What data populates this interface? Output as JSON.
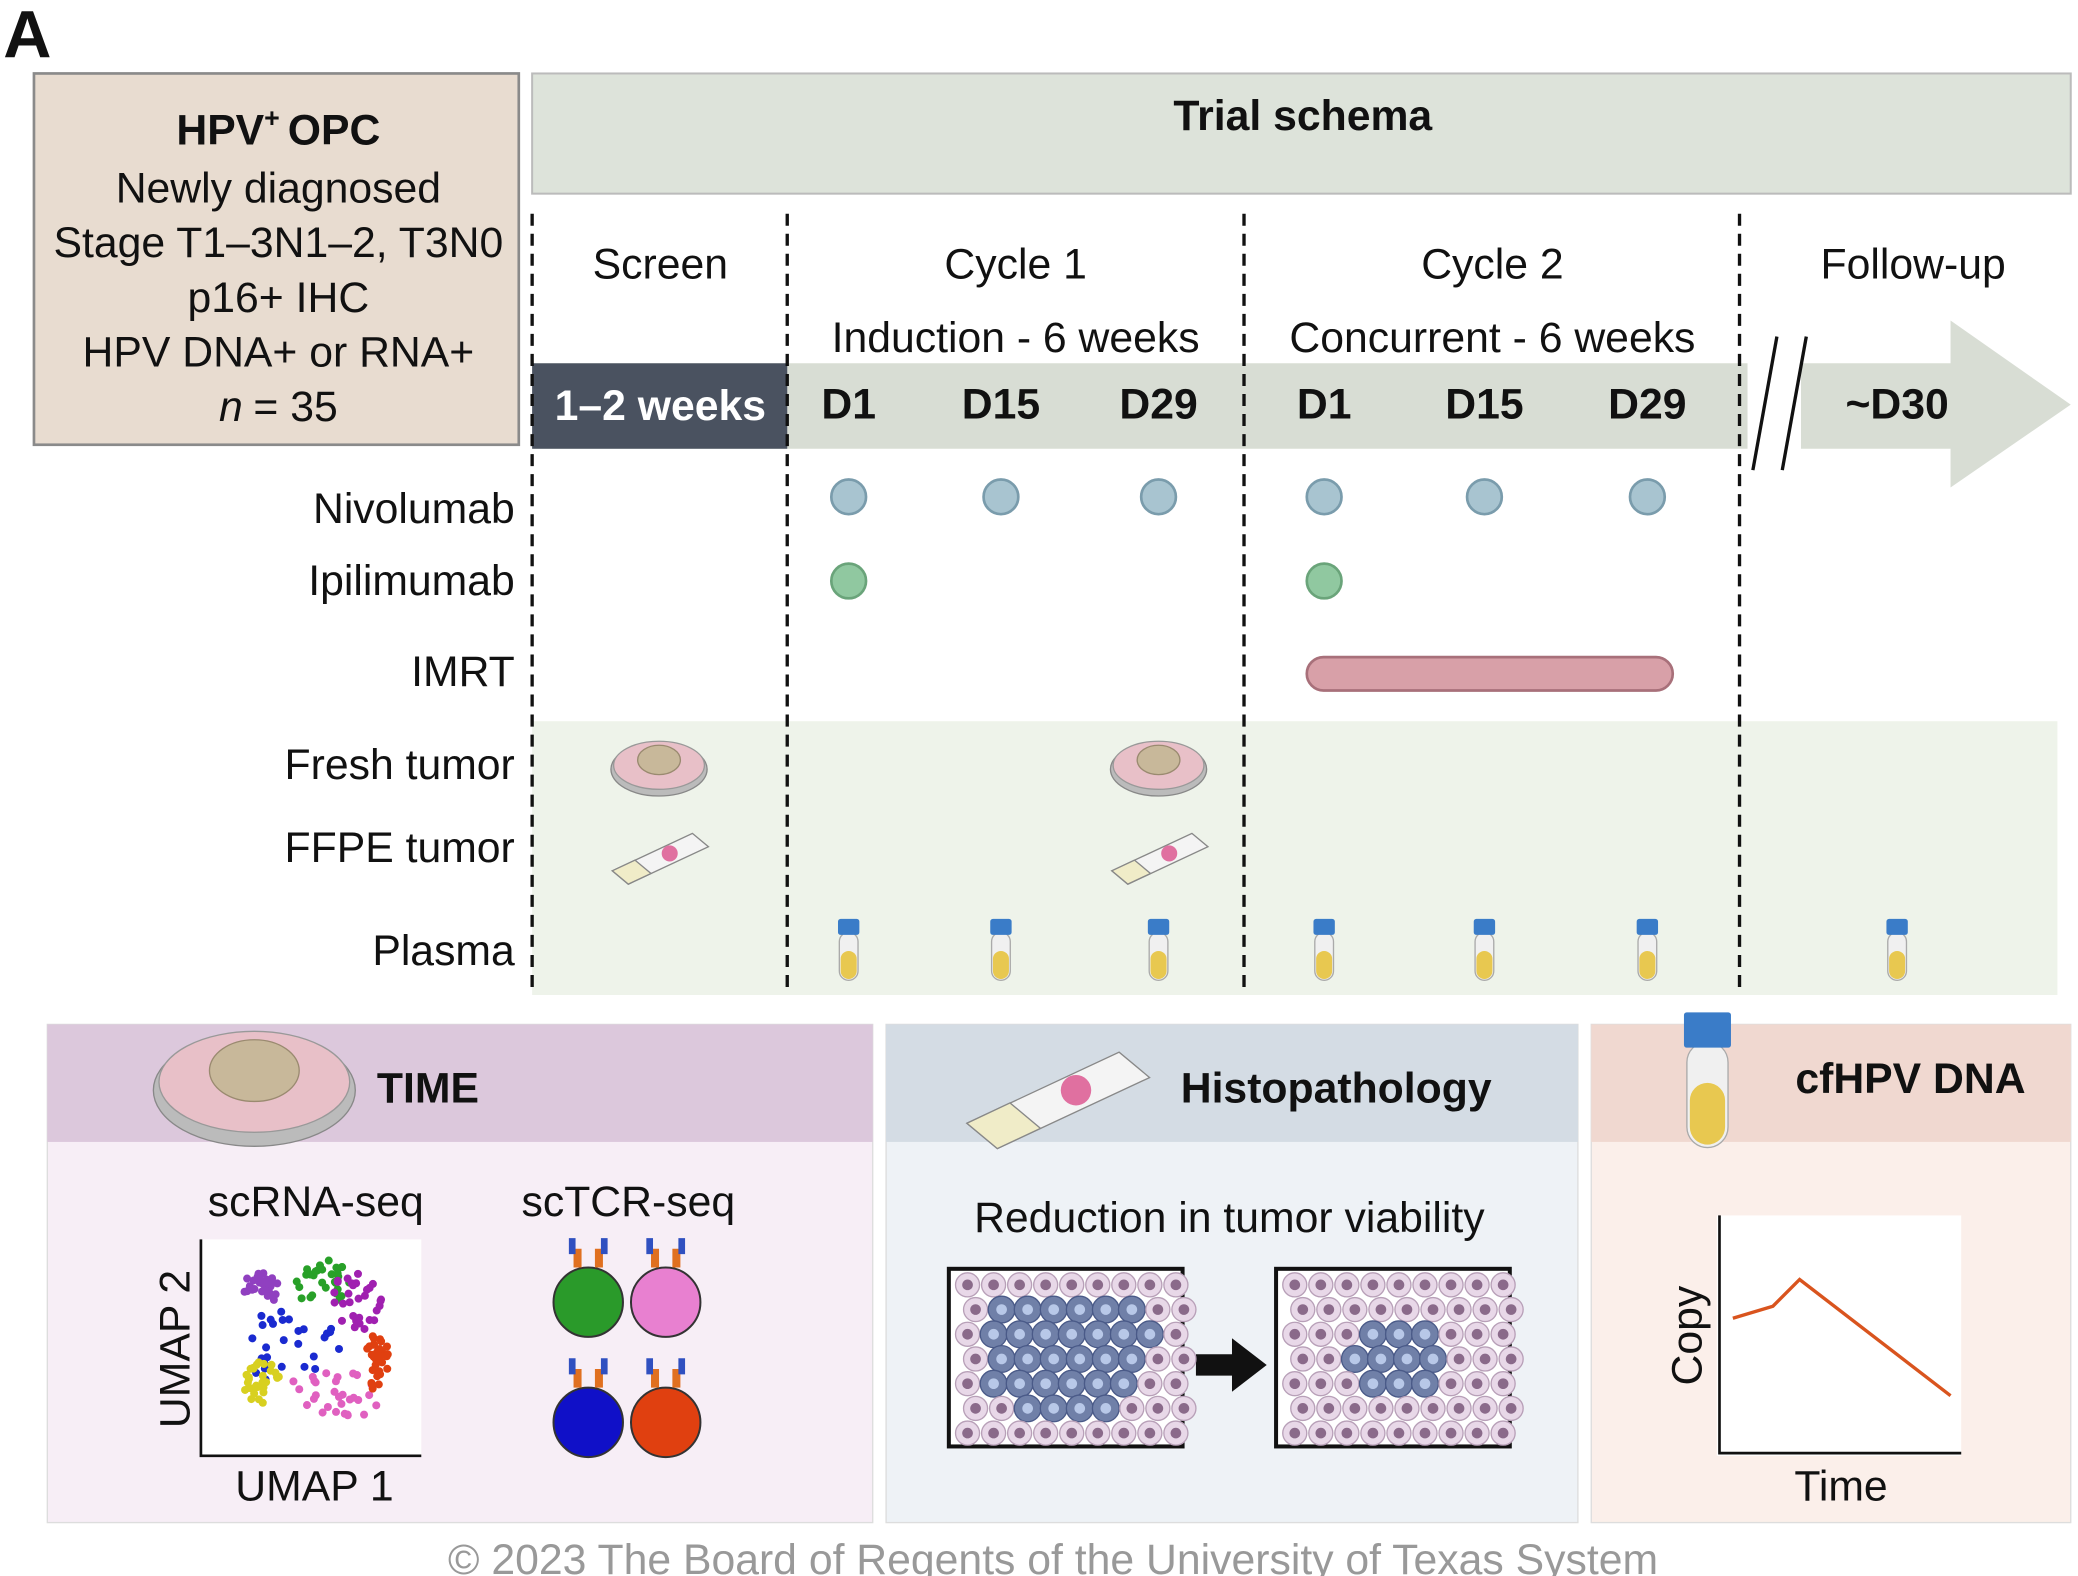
{
  "panel_label": "A",
  "eligibility": {
    "title": {
      "text": "HPV",
      "sup": "+",
      "rest": "OPC"
    },
    "lines": [
      "Newly diagnosed",
      "Stage T1–3N1–2, T3N0",
      "p16+ IHC",
      "HPV DNA+ or RNA+"
    ],
    "n": {
      "italic": "n",
      "rest": "= 35"
    }
  },
  "schema": {
    "title": "Trial schema",
    "phases": [
      {
        "name": "Screen",
        "duration": "1–2 weeks"
      },
      {
        "name": "Cycle 1",
        "subtitle": "Induction - 6 weeks",
        "days": [
          "D1",
          "D15",
          "D29"
        ]
      },
      {
        "name": "Cycle 2",
        "subtitle": "Concurrent - 6 weeks",
        "days": [
          "D1",
          "D15",
          "D29"
        ]
      },
      {
        "name": "Follow-up",
        "days": [
          "~D30"
        ]
      }
    ],
    "rows": [
      "Nivolumab",
      "Ipilimumab",
      "IMRT",
      "Fresh tumor",
      "FFPE tumor",
      "Plasma"
    ]
  },
  "panels": {
    "time": {
      "title": "TIME",
      "scrna": "scRNA-seq",
      "sctcr": "scTCR-seq",
      "x_label": "UMAP 1",
      "y_label": "UMAP 2"
    },
    "histo": {
      "title": "Histopathology",
      "caption": "Reduction in tumor viability"
    },
    "cf": {
      "title": "cfHPV DNA",
      "y_label": "Copy",
      "x_label": "Time"
    }
  },
  "copyright": "© 2023 The Board of Regents of the University of Texas System"
}
